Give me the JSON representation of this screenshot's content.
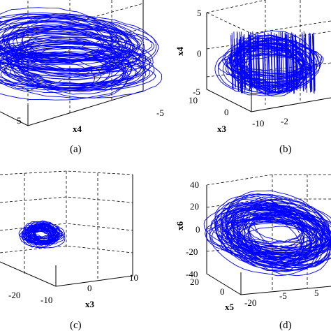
{
  "chart_data": [
    {
      "type": "line",
      "caption": "(a)",
      "axes": {
        "x": {
          "label": "x4",
          "ticks": [
            "5",
            "-5"
          ]
        }
      }
    },
    {
      "type": "line",
      "caption": "(b)",
      "axes": {
        "z": {
          "label": "x4",
          "ticks": [
            "5",
            "0",
            "-5"
          ]
        },
        "x": {
          "label": "x3",
          "ticks": [
            "10",
            "0",
            "-10"
          ]
        },
        "y": {
          "label": "",
          "ticks": [
            "-2"
          ]
        }
      }
    },
    {
      "type": "line",
      "caption": "(c)",
      "axes": {
        "x": {
          "label": "x3",
          "ticks": [
            "-10",
            "0",
            "10"
          ]
        },
        "y": {
          "label": "",
          "ticks": [
            "-20"
          ]
        }
      }
    },
    {
      "type": "line",
      "caption": "(d)",
      "axes": {
        "z": {
          "label": "x6",
          "ticks": [
            "40",
            "20",
            "0",
            "-20",
            "-40"
          ]
        },
        "x": {
          "label": "x5",
          "ticks": [
            "20",
            "0",
            "-20"
          ]
        },
        "y": {
          "label": "",
          "ticks": [
            "-5",
            "5"
          ]
        }
      }
    }
  ],
  "colors": {
    "trajectory": "#0000ff",
    "axes": "#000000"
  }
}
